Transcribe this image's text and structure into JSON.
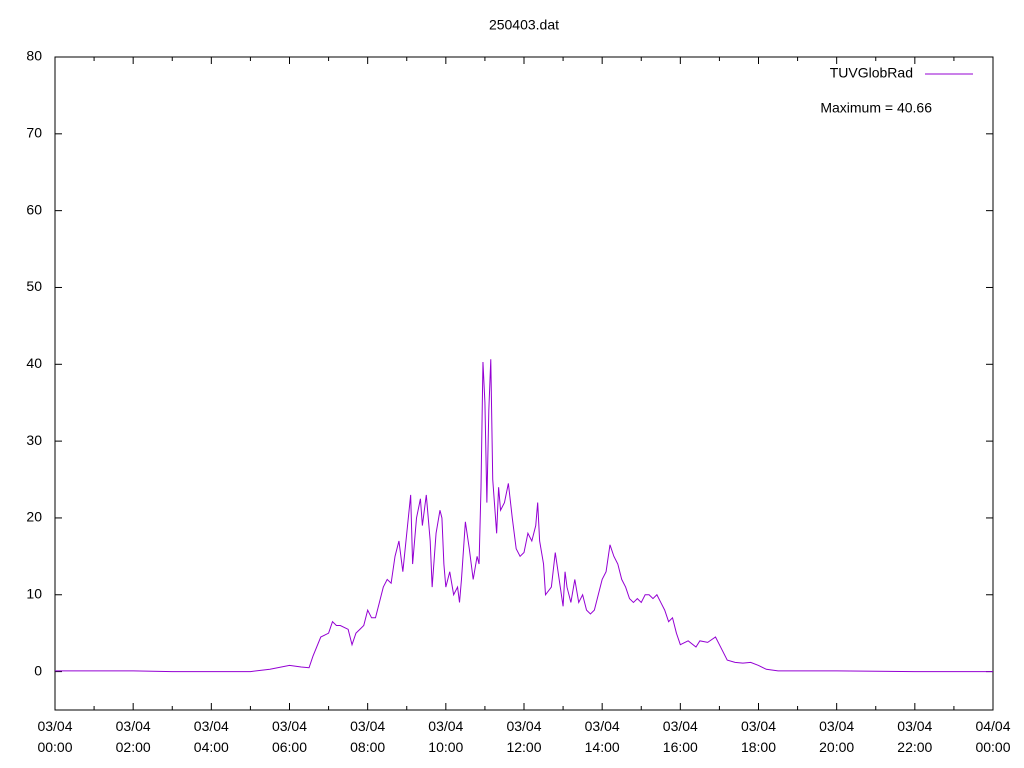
{
  "chart_data": {
    "type": "line",
    "title": "250403.dat",
    "x": [
      0,
      1,
      2,
      3,
      4,
      5,
      5.5,
      6.0,
      6.3,
      6.5,
      6.6,
      6.8,
      7.0,
      7.1,
      7.2,
      7.3,
      7.5,
      7.6,
      7.7,
      7.8,
      7.9,
      8.0,
      8.1,
      8.2,
      8.3,
      8.4,
      8.5,
      8.6,
      8.7,
      8.8,
      8.9,
      9.0,
      9.1,
      9.15,
      9.25,
      9.35,
      9.4,
      9.5,
      9.6,
      9.65,
      9.75,
      9.85,
      9.9,
      9.95,
      10.0,
      10.1,
      10.2,
      10.3,
      10.35,
      10.4,
      10.5,
      10.6,
      10.7,
      10.8,
      10.85,
      10.9,
      10.95,
      11.0,
      11.05,
      11.1,
      11.15,
      11.2,
      11.3,
      11.35,
      11.4,
      11.5,
      11.6,
      11.7,
      11.8,
      11.9,
      12.0,
      12.1,
      12.2,
      12.3,
      12.35,
      12.4,
      12.5,
      12.55,
      12.7,
      12.8,
      12.9,
      13.0,
      13.05,
      13.1,
      13.2,
      13.3,
      13.4,
      13.5,
      13.6,
      13.7,
      13.8,
      13.9,
      14.0,
      14.1,
      14.2,
      14.3,
      14.4,
      14.5,
      14.6,
      14.7,
      14.8,
      14.9,
      15.0,
      15.1,
      15.2,
      15.3,
      15.4,
      15.5,
      15.6,
      15.7,
      15.8,
      15.9,
      16.0,
      16.2,
      16.4,
      16.5,
      16.7,
      16.9,
      17.0,
      17.2,
      17.4,
      17.6,
      17.8,
      18.0,
      18.2,
      18.5,
      20,
      22,
      24
    ],
    "series": [
      {
        "name": "TUVGlobRad",
        "color": "#9400d3",
        "values": [
          0.1,
          0.1,
          0.1,
          0,
          0,
          0,
          0.3,
          0.8,
          0.6,
          0.5,
          2,
          4.5,
          5,
          6.5,
          6,
          6,
          5.5,
          3.5,
          5,
          5.5,
          6,
          8,
          7,
          7,
          9,
          11,
          12,
          11.5,
          15,
          17,
          13,
          18,
          23,
          14,
          20,
          22.5,
          19,
          23,
          17,
          11,
          18,
          21,
          20,
          14,
          11,
          13,
          10,
          11,
          9,
          12,
          19.5,
          16,
          12,
          15,
          14,
          24,
          40.3,
          35,
          22,
          34,
          40.66,
          25,
          18,
          24,
          21,
          22,
          24.5,
          20,
          16,
          15,
          15.5,
          18,
          17,
          19,
          22,
          17,
          14,
          10,
          11,
          15.5,
          12,
          8.5,
          13,
          11,
          9,
          12,
          9,
          10,
          8,
          7.5,
          8,
          10,
          12,
          13,
          16.5,
          15,
          14,
          12,
          11,
          9.5,
          9,
          9.5,
          9,
          10,
          10,
          9.5,
          10,
          9,
          8,
          6.5,
          7,
          5,
          3.5,
          4,
          3.2,
          4,
          3.8,
          4.5,
          3.5,
          1.5,
          1.2,
          1.1,
          1.2,
          0.8,
          0.3,
          0.1,
          0.1,
          0,
          0
        ]
      }
    ],
    "xlim": [
      0,
      24
    ],
    "xticks": [
      {
        "value": 0,
        "label": "03/04 00:00"
      },
      {
        "value": 2,
        "label": "03/04 02:00"
      },
      {
        "value": 4,
        "label": "03/04 04:00"
      },
      {
        "value": 6,
        "label": "03/04 06:00"
      },
      {
        "value": 8,
        "label": "03/04 08:00"
      },
      {
        "value": 10,
        "label": "03/04 10:00"
      },
      {
        "value": 12,
        "label": "03/04 12:00"
      },
      {
        "value": 14,
        "label": "03/04 14:00"
      },
      {
        "value": 16,
        "label": "03/04 16:00"
      },
      {
        "value": 18,
        "label": "03/04 18:00"
      },
      {
        "value": 20,
        "label": "03/04 20:00"
      },
      {
        "value": 22,
        "label": "03/04 22:00"
      },
      {
        "value": 24,
        "label": "04/04 00:00"
      }
    ],
    "xminor": 2,
    "ylim": [
      -5,
      80
    ],
    "yticks": [
      0,
      10,
      20,
      30,
      40,
      50,
      60,
      70,
      80
    ],
    "annotation": "Maximum = 40.66",
    "legend": "top-right",
    "grid": false
  }
}
